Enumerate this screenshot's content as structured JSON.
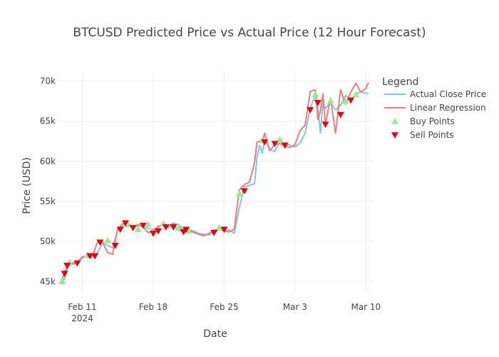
{
  "chart_data": {
    "type": "line",
    "title": "BTCUSD Predicted Price vs Actual Price (12 Hour Forecast)",
    "xlabel": "Date",
    "ylabel": "Price (USD)",
    "x_ticks": [
      {
        "date": "2024-02-11",
        "label": "Feb 11",
        "sublabel": "2024"
      },
      {
        "date": "2024-02-18",
        "label": "Feb 18",
        "sublabel": ""
      },
      {
        "date": "2024-02-25",
        "label": "Feb 25",
        "sublabel": ""
      },
      {
        "date": "2024-03-03",
        "label": "Mar 3",
        "sublabel": ""
      },
      {
        "date": "2024-03-10",
        "label": "Mar 10",
        "sublabel": ""
      }
    ],
    "y_ticks": [
      {
        "value": 45000,
        "label": "45k"
      },
      {
        "value": 50000,
        "label": "50k"
      },
      {
        "value": 55000,
        "label": "55k"
      },
      {
        "value": 60000,
        "label": "60k"
      },
      {
        "value": 65000,
        "label": "65k"
      },
      {
        "value": 70000,
        "label": "70k"
      }
    ],
    "xlim": [
      "2024-02-08T12:00",
      "2024-03-10T18:00"
    ],
    "ylim": [
      43600,
      71200
    ],
    "grid": true,
    "legend": {
      "title": "Legend",
      "position": "right"
    },
    "series": [
      {
        "name": "Actual Close Price",
        "kind": "line",
        "color": "#7ec8e3",
        "points": [
          [
            "2024-02-09T00:00",
            45000
          ],
          [
            "2024-02-09T06:00",
            45300
          ],
          [
            "2024-02-09T12:00",
            46500
          ],
          [
            "2024-02-09T18:00",
            47200
          ],
          [
            "2024-02-10T00:00",
            47100
          ],
          [
            "2024-02-10T12:00",
            47300
          ],
          [
            "2024-02-11T00:00",
            47900
          ],
          [
            "2024-02-11T12:00",
            48300
          ],
          [
            "2024-02-12T00:00",
            48000
          ],
          [
            "2024-02-12T12:00",
            48600
          ],
          [
            "2024-02-13T00:00",
            49800
          ],
          [
            "2024-02-13T12:00",
            49500
          ],
          [
            "2024-02-14T00:00",
            49200
          ],
          [
            "2024-02-14T12:00",
            51400
          ],
          [
            "2024-02-15T00:00",
            51900
          ],
          [
            "2024-02-15T12:00",
            52200
          ],
          [
            "2024-02-16T00:00",
            51800
          ],
          [
            "2024-02-16T12:00",
            52000
          ],
          [
            "2024-02-17T00:00",
            51900
          ],
          [
            "2024-02-17T12:00",
            51600
          ],
          [
            "2024-02-18T00:00",
            51500
          ],
          [
            "2024-02-18T12:00",
            51700
          ],
          [
            "2024-02-19T00:00",
            52200
          ],
          [
            "2024-02-19T12:00",
            52000
          ],
          [
            "2024-02-20T00:00",
            52300
          ],
          [
            "2024-02-20T12:00",
            52100
          ],
          [
            "2024-02-21T00:00",
            51500
          ],
          [
            "2024-02-21T12:00",
            51400
          ],
          [
            "2024-02-22T00:00",
            51300
          ],
          [
            "2024-02-22T12:00",
            51000
          ],
          [
            "2024-02-23T00:00",
            50900
          ],
          [
            "2024-02-23T12:00",
            50800
          ],
          [
            "2024-02-24T00:00",
            51100
          ],
          [
            "2024-02-24T12:00",
            51500
          ],
          [
            "2024-02-25T00:00",
            51600
          ],
          [
            "2024-02-25T12:00",
            51400
          ],
          [
            "2024-02-26T00:00",
            51000
          ],
          [
            "2024-02-26T12:00",
            54200
          ],
          [
            "2024-02-27T00:00",
            56800
          ],
          [
            "2024-02-27T12:00",
            57000
          ],
          [
            "2024-02-28T00:00",
            57200
          ],
          [
            "2024-02-28T06:00",
            60500
          ],
          [
            "2024-02-28T12:00",
            62000
          ],
          [
            "2024-02-28T18:00",
            61000
          ],
          [
            "2024-02-29T00:00",
            62600
          ],
          [
            "2024-02-29T12:00",
            61500
          ],
          [
            "2024-03-01T00:00",
            61200
          ],
          [
            "2024-03-01T12:00",
            62500
          ],
          [
            "2024-03-02T00:00",
            62100
          ],
          [
            "2024-03-02T12:00",
            62000
          ],
          [
            "2024-03-03T00:00",
            61800
          ],
          [
            "2024-03-03T12:00",
            62300
          ],
          [
            "2024-03-04T00:00",
            63500
          ],
          [
            "2024-03-04T12:00",
            66600
          ],
          [
            "2024-03-05T00:00",
            68300
          ],
          [
            "2024-03-05T06:00",
            66800
          ],
          [
            "2024-03-05T12:00",
            63500
          ],
          [
            "2024-03-05T18:00",
            67200
          ],
          [
            "2024-03-06T00:00",
            66600
          ],
          [
            "2024-03-06T12:00",
            67300
          ],
          [
            "2024-03-07T00:00",
            66400
          ],
          [
            "2024-03-07T12:00",
            67000
          ],
          [
            "2024-03-08T00:00",
            68200
          ],
          [
            "2024-03-08T12:00",
            67700
          ],
          [
            "2024-03-09T00:00",
            68400
          ],
          [
            "2024-03-09T12:00",
            68600
          ],
          [
            "2024-03-10T00:00",
            68500
          ],
          [
            "2024-03-10T06:00",
            68400
          ]
        ]
      },
      {
        "name": "Linear Regression",
        "kind": "line",
        "color": "#ef7b7b",
        "points": [
          [
            "2024-02-09T00:00",
            45200
          ],
          [
            "2024-02-09T06:00",
            46200
          ],
          [
            "2024-02-09T12:00",
            47000
          ],
          [
            "2024-02-09T18:00",
            47000
          ],
          [
            "2024-02-10T00:00",
            47300
          ],
          [
            "2024-02-10T12:00",
            47400
          ],
          [
            "2024-02-11T00:00",
            48100
          ],
          [
            "2024-02-11T12:00",
            48000
          ],
          [
            "2024-02-12T00:00",
            48200
          ],
          [
            "2024-02-12T12:00",
            49900
          ],
          [
            "2024-02-13T00:00",
            49900
          ],
          [
            "2024-02-13T12:00",
            48600
          ],
          [
            "2024-02-14T00:00",
            48400
          ],
          [
            "2024-02-14T12:00",
            51600
          ],
          [
            "2024-02-15T00:00",
            52200
          ],
          [
            "2024-02-15T12:00",
            52300
          ],
          [
            "2024-02-16T00:00",
            51700
          ],
          [
            "2024-02-16T12:00",
            52100
          ],
          [
            "2024-02-17T00:00",
            51800
          ],
          [
            "2024-02-17T12:00",
            51100
          ],
          [
            "2024-02-18T00:00",
            51300
          ],
          [
            "2024-02-18T12:00",
            51900
          ],
          [
            "2024-02-19T00:00",
            52000
          ],
          [
            "2024-02-19T12:00",
            51800
          ],
          [
            "2024-02-20T00:00",
            52100
          ],
          [
            "2024-02-20T12:00",
            51400
          ],
          [
            "2024-02-21T00:00",
            51200
          ],
          [
            "2024-02-21T12:00",
            51500
          ],
          [
            "2024-02-22T00:00",
            51100
          ],
          [
            "2024-02-22T12:00",
            50900
          ],
          [
            "2024-02-23T00:00",
            50700
          ],
          [
            "2024-02-23T12:00",
            51000
          ],
          [
            "2024-02-24T00:00",
            51400
          ],
          [
            "2024-02-24T12:00",
            51600
          ],
          [
            "2024-02-25T00:00",
            51300
          ],
          [
            "2024-02-25T12:00",
            51200
          ],
          [
            "2024-02-26T00:00",
            51500
          ],
          [
            "2024-02-26T12:00",
            56400
          ],
          [
            "2024-02-27T00:00",
            57100
          ],
          [
            "2024-02-27T12:00",
            57400
          ],
          [
            "2024-02-28T00:00",
            59800
          ],
          [
            "2024-02-28T06:00",
            62400
          ],
          [
            "2024-02-28T12:00",
            62500
          ],
          [
            "2024-02-28T18:00",
            62300
          ],
          [
            "2024-02-29T00:00",
            63500
          ],
          [
            "2024-02-29T12:00",
            61300
          ],
          [
            "2024-03-01T00:00",
            62100
          ],
          [
            "2024-03-01T12:00",
            62200
          ],
          [
            "2024-03-02T00:00",
            61900
          ],
          [
            "2024-03-02T12:00",
            61700
          ],
          [
            "2024-03-03T00:00",
            62100
          ],
          [
            "2024-03-03T12:00",
            63800
          ],
          [
            "2024-03-04T00:00",
            64500
          ],
          [
            "2024-03-04T12:00",
            68700
          ],
          [
            "2024-03-05T00:00",
            68900
          ],
          [
            "2024-03-05T06:00",
            65200
          ],
          [
            "2024-03-05T12:00",
            66200
          ],
          [
            "2024-03-05T18:00",
            68400
          ],
          [
            "2024-03-06T00:00",
            64600
          ],
          [
            "2024-03-06T12:00",
            67900
          ],
          [
            "2024-03-07T00:00",
            63500
          ],
          [
            "2024-03-07T12:00",
            68900
          ],
          [
            "2024-03-08T00:00",
            67100
          ],
          [
            "2024-03-08T12:00",
            68600
          ],
          [
            "2024-03-09T00:00",
            69700
          ],
          [
            "2024-03-09T12:00",
            68600
          ],
          [
            "2024-03-10T00:00",
            69100
          ],
          [
            "2024-03-10T06:00",
            69800
          ]
        ]
      },
      {
        "name": "Buy Points",
        "kind": "marker",
        "marker": "triangle-up",
        "color": "#90ee90",
        "points": [
          [
            "2024-02-09T00:00",
            45000
          ],
          [
            "2024-02-09T18:00",
            47400
          ],
          [
            "2024-02-11T12:00",
            48300
          ],
          [
            "2024-02-13T12:00",
            50100
          ],
          [
            "2024-02-15T12:00",
            52100
          ],
          [
            "2024-02-16T12:00",
            51500
          ],
          [
            "2024-02-17T12:00",
            52100
          ],
          [
            "2024-02-19T00:00",
            52200
          ],
          [
            "2024-02-20T12:00",
            51700
          ],
          [
            "2024-02-21T12:00",
            51300
          ],
          [
            "2024-02-24T12:00",
            51700
          ],
          [
            "2024-02-26T12:00",
            55900
          ],
          [
            "2024-02-28T18:00",
            62600
          ],
          [
            "2024-03-01T12:00",
            62700
          ],
          [
            "2024-03-05T00:00",
            68300
          ],
          [
            "2024-03-06T12:00",
            67500
          ],
          [
            "2024-03-08T00:00",
            67500
          ],
          [
            "2024-03-09T00:00",
            68300
          ]
        ]
      },
      {
        "name": "Sell Points",
        "kind": "marker",
        "marker": "triangle-down",
        "color": "#e8000b",
        "points": [
          [
            "2024-02-09T06:00",
            46000
          ],
          [
            "2024-02-09T12:00",
            47000
          ],
          [
            "2024-02-10T12:00",
            47300
          ],
          [
            "2024-02-11T18:00",
            48200
          ],
          [
            "2024-02-12T06:00",
            48200
          ],
          [
            "2024-02-12T18:00",
            49900
          ],
          [
            "2024-02-14T06:00",
            49500
          ],
          [
            "2024-02-14T18:00",
            51500
          ],
          [
            "2024-02-15T06:00",
            52300
          ],
          [
            "2024-02-16T00:00",
            51700
          ],
          [
            "2024-02-17T00:00",
            52000
          ],
          [
            "2024-02-18T00:00",
            51000
          ],
          [
            "2024-02-18T12:00",
            51300
          ],
          [
            "2024-02-19T06:00",
            51800
          ],
          [
            "2024-02-20T00:00",
            51800
          ],
          [
            "2024-02-21T00:00",
            51200
          ],
          [
            "2024-02-21T06:00",
            51500
          ],
          [
            "2024-02-24T00:00",
            51100
          ],
          [
            "2024-02-25T00:00",
            51500
          ],
          [
            "2024-02-27T00:00",
            56300
          ],
          [
            "2024-02-29T00:00",
            62400
          ],
          [
            "2024-03-01T00:00",
            62200
          ],
          [
            "2024-03-02T00:00",
            62000
          ],
          [
            "2024-03-04T12:00",
            66400
          ],
          [
            "2024-03-05T06:00",
            67300
          ],
          [
            "2024-03-06T00:00",
            64600
          ],
          [
            "2024-03-07T12:00",
            65800
          ],
          [
            "2024-03-08T12:00",
            67600
          ]
        ]
      }
    ]
  }
}
